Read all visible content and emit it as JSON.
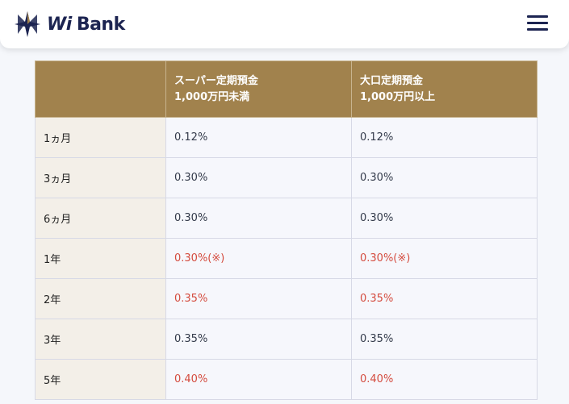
{
  "header": {
    "logo_prefix": "Wi",
    "logo_name": "Bank",
    "menu_icon": "hamburger-menu-icon"
  },
  "colors": {
    "brand_navy": "#1c2451",
    "brand_gold": "#a1824d",
    "highlight_red": "#d44b3e"
  },
  "table": {
    "headers": [
      "",
      "スーパー定期預金\n1,000万円未満",
      "大口定期預金\n1,000万円以上"
    ],
    "rows": [
      {
        "term": "1ヵ月",
        "super": "0.12%",
        "large": "0.12%",
        "highlight": false
      },
      {
        "term": "3ヵ月",
        "super": "0.30%",
        "large": "0.30%",
        "highlight": false
      },
      {
        "term": "6ヵ月",
        "super": "0.30%",
        "large": "0.30%",
        "highlight": false
      },
      {
        "term": "1年",
        "super": "0.30%(※)",
        "large": "0.30%(※)",
        "highlight": true
      },
      {
        "term": "2年",
        "super": "0.35%",
        "large": "0.35%",
        "highlight": true
      },
      {
        "term": "3年",
        "super": "0.35%",
        "large": "0.35%",
        "highlight": false
      },
      {
        "term": "5年",
        "super": "0.40%",
        "large": "0.40%",
        "highlight": true
      }
    ]
  }
}
